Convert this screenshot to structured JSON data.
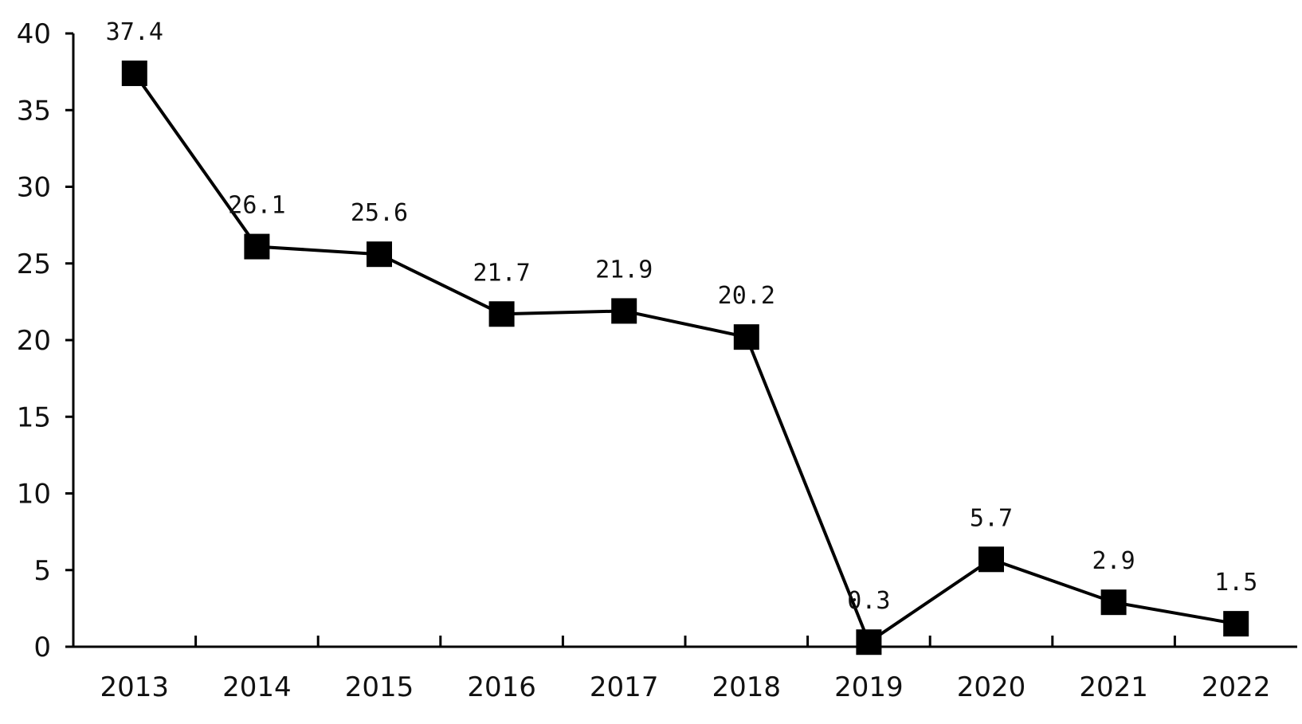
{
  "chart_data": {
    "type": "line",
    "title": "",
    "xlabel": "",
    "ylabel": "",
    "categories": [
      "2013",
      "2014",
      "2015",
      "2016",
      "2017",
      "2018",
      "2019",
      "2020",
      "2021",
      "2022"
    ],
    "series": [
      {
        "values": [
          37.4,
          26.1,
          25.6,
          21.7,
          21.9,
          20.2,
          0.3,
          5.7,
          2.9,
          1.5
        ]
      }
    ],
    "data_labels": [
      "37.4",
      "26.1",
      "25.6",
      "21.7",
      "21.9",
      "20.2",
      "0.3",
      "5.7",
      "2.9",
      "1.5"
    ],
    "ylim": [
      0,
      40
    ],
    "yticks": [
      0,
      5,
      10,
      15,
      20,
      25,
      30,
      35,
      40
    ],
    "grid": false,
    "legend": "none",
    "colors": {
      "line": "#000000",
      "marker": "#000000",
      "axis": "#000000"
    }
  }
}
